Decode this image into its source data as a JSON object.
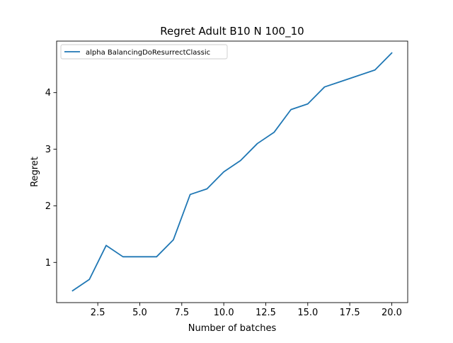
{
  "chart_data": {
    "type": "line",
    "title": "Regret Adult B10 N 100_10",
    "xlabel": "Number of batches",
    "ylabel": "Regret",
    "xlim": [
      0.05,
      20.95
    ],
    "ylim": [
      0.29,
      4.91
    ],
    "xticks": [
      2.5,
      5.0,
      7.5,
      10.0,
      12.5,
      15.0,
      17.5,
      20.0
    ],
    "xtick_labels": [
      "2.5",
      "5.0",
      "7.5",
      "10.0",
      "12.5",
      "15.0",
      "17.5",
      "20.0"
    ],
    "yticks": [
      1,
      2,
      3,
      4
    ],
    "ytick_labels": [
      "1",
      "2",
      "3",
      "4"
    ],
    "grid": false,
    "legend_position": "top-left",
    "series": [
      {
        "name": "alpha BalancingDoResurrectClassic",
        "color": "#1f77b4",
        "x": [
          1,
          2,
          3,
          4,
          5,
          6,
          7,
          8,
          9,
          10,
          11,
          12,
          13,
          14,
          15,
          16,
          17,
          18,
          19,
          20
        ],
        "y": [
          0.5,
          0.7,
          1.3,
          1.1,
          1.1,
          1.1,
          1.4,
          2.2,
          2.3,
          2.6,
          2.8,
          3.1,
          3.3,
          3.7,
          3.8,
          4.1,
          4.2,
          4.3,
          4.4,
          4.7
        ]
      }
    ]
  }
}
